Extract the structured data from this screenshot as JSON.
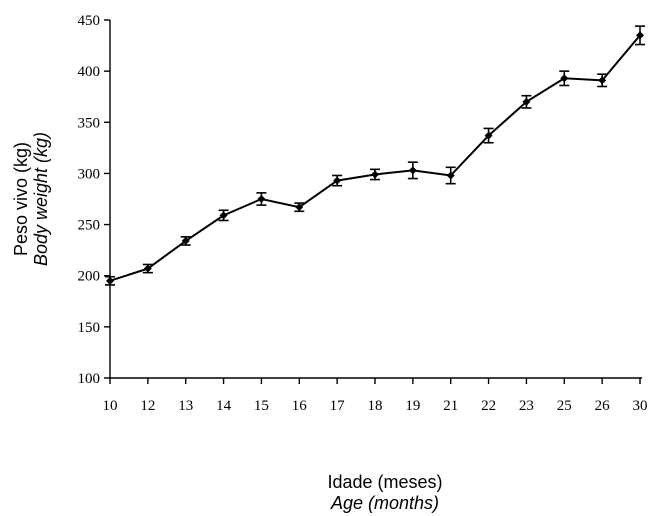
{
  "chart_data": {
    "type": "line",
    "categories": [
      "10",
      "12",
      "13",
      "14",
      "15",
      "16",
      "17",
      "18",
      "19",
      "21",
      "22",
      "23",
      "25",
      "26",
      "30"
    ],
    "series": [
      {
        "values": [
          195,
          207,
          234,
          259,
          275,
          267,
          293,
          299,
          303,
          298,
          337,
          370,
          393,
          391,
          435
        ],
        "error": [
          4,
          4,
          4,
          5,
          6,
          4,
          5,
          5,
          8,
          8,
          7,
          6,
          7,
          6,
          9
        ]
      }
    ],
    "ylim": [
      100,
      450
    ],
    "yticks": [
      100,
      150,
      200,
      250,
      300,
      350,
      400,
      450
    ],
    "ylabel": "Peso vivo (kg)",
    "ylabel_en": "Body weight (kg)",
    "xlabel": "Idade (meses)",
    "xlabel_en": "Age (months)",
    "grid": false,
    "marker": "diamond",
    "error_bars": true
  }
}
